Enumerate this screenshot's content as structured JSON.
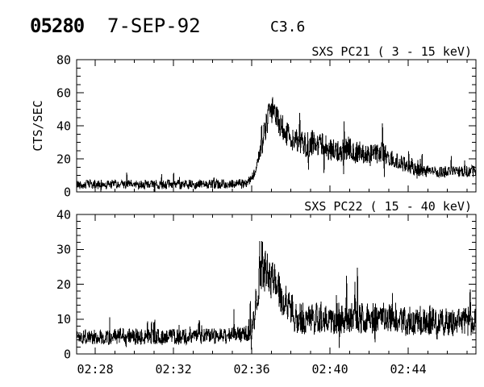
{
  "header": {
    "event_number": "05280",
    "date": "7-SEP-92",
    "goes_class": "C3.6"
  },
  "x_axis": {
    "start_min_after_0200": 27.05,
    "end_min_after_0200": 47.46,
    "minor_tick_every_min": 1,
    "major_tick_minutes": [
      28,
      32,
      36,
      40,
      44
    ],
    "major_tick_labels": [
      "02:28",
      "02:32",
      "02:36",
      "02:40",
      "02:44"
    ]
  },
  "chart_data": [
    {
      "type": "line",
      "name": "SXS PC21",
      "title": "SXS PC21  (  3 - 15 keV)",
      "energy_range_keV": [
        3,
        15
      ],
      "ylabel": "CTS/SEC",
      "ylim": [
        0,
        80
      ],
      "ytick_major": 20,
      "ytick_minor": 5,
      "ytick_labels": [
        "0",
        "20",
        "40",
        "60",
        "80"
      ],
      "grid": false,
      "color": "#000000",
      "envelope": [
        [
          27.05,
          4.5
        ],
        [
          33.0,
          4.5
        ],
        [
          35.0,
          4.8
        ],
        [
          35.8,
          5.5
        ],
        [
          36.1,
          10
        ],
        [
          36.35,
          20
        ],
        [
          36.6,
          33
        ],
        [
          36.85,
          45
        ],
        [
          37.05,
          50
        ],
        [
          37.25,
          46
        ],
        [
          37.5,
          40
        ],
        [
          37.9,
          34
        ],
        [
          38.4,
          30
        ],
        [
          38.9,
          28.5
        ],
        [
          39.3,
          30
        ],
        [
          39.9,
          26
        ],
        [
          40.4,
          24
        ],
        [
          40.9,
          26.5
        ],
        [
          41.4,
          24
        ],
        [
          42.1,
          23
        ],
        [
          42.7,
          23.5
        ],
        [
          43.3,
          19
        ],
        [
          43.9,
          16
        ],
        [
          44.4,
          13.5
        ],
        [
          45.1,
          12
        ],
        [
          45.9,
          12.5
        ],
        [
          46.6,
          12
        ],
        [
          47.46,
          12.5
        ]
      ],
      "noise": {
        "min_sigma": 2.8,
        "frac": 0.28,
        "max_sigma": 8,
        "seed": 42
      }
    },
    {
      "type": "line",
      "name": "SXS PC22",
      "title": "SXS PC22  ( 15 - 40 keV)",
      "energy_range_keV": [
        15,
        40
      ],
      "ylabel": "",
      "ylim": [
        0,
        40
      ],
      "ytick_major": 10,
      "ytick_minor": 2,
      "ytick_labels": [
        "0",
        "10",
        "20",
        "30",
        "40"
      ],
      "grid": false,
      "color": "#000000",
      "envelope": [
        [
          27.05,
          5.0
        ],
        [
          34.0,
          5.0
        ],
        [
          35.6,
          5.5
        ],
        [
          35.9,
          7
        ],
        [
          36.2,
          13
        ],
        [
          36.45,
          22
        ],
        [
          36.7,
          25
        ],
        [
          36.95,
          21
        ],
        [
          37.15,
          22
        ],
        [
          37.5,
          17
        ],
        [
          37.9,
          12.5
        ],
        [
          38.4,
          10.5
        ],
        [
          39.0,
          10
        ],
        [
          40.0,
          10.5
        ],
        [
          41.0,
          11
        ],
        [
          42.0,
          10
        ],
        [
          43.0,
          10.5
        ],
        [
          44.0,
          10
        ],
        [
          45.0,
          9.5
        ],
        [
          46.2,
          9
        ],
        [
          47.46,
          9.5
        ]
      ],
      "noise": {
        "min_sigma": 2.3,
        "frac": 0.45,
        "max_sigma": 5.5,
        "seed": 1337
      }
    }
  ]
}
